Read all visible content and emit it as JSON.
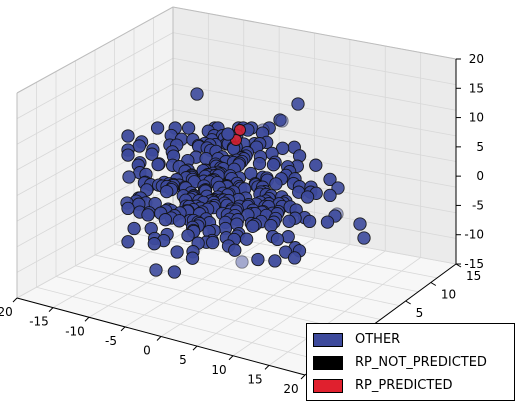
{
  "chart_data": {
    "type": "scatter",
    "projection": "3d",
    "title": "",
    "xlabel": "",
    "ylabel": "",
    "zlabel": "",
    "xlim": [
      -20,
      20
    ],
    "ylim": [
      -15,
      15
    ],
    "zlim": [
      -15,
      20
    ],
    "x_ticks": [
      "-20",
      "-15",
      "-10",
      "-5",
      "0",
      "5",
      "10",
      "15",
      "20"
    ],
    "y_ticks": [
      "5",
      "10",
      "15"
    ],
    "z_ticks": [
      "-15",
      "-10",
      "-5",
      "0",
      "5",
      "10",
      "15",
      "20"
    ],
    "grid": true,
    "legend_position": "bottom-right",
    "series": [
      {
        "name": "OTHER",
        "color": "#3d4a9c",
        "note_visible_point_count": "approx 330"
      },
      {
        "name": "RP_NOT_PREDICTED",
        "color": "#000000"
      },
      {
        "name": "RP_PREDICTED",
        "color": "#e0202e"
      }
    ],
    "outliers": [
      {
        "x": -5,
        "y": 12,
        "z": 14,
        "series": "OTHER"
      },
      {
        "x": 14,
        "y": 8,
        "z": 14,
        "series": "OTHER"
      },
      {
        "x": 19,
        "y": 6,
        "z": -5,
        "series": "OTHER"
      },
      {
        "x": 18,
        "y": 2,
        "z": -10,
        "series": "OTHER"
      },
      {
        "x": -19,
        "y": -5,
        "z": -3,
        "series": "OTHER"
      },
      {
        "x": -16,
        "y": -12,
        "z": -10,
        "series": "OTHER"
      }
    ]
  }
}
